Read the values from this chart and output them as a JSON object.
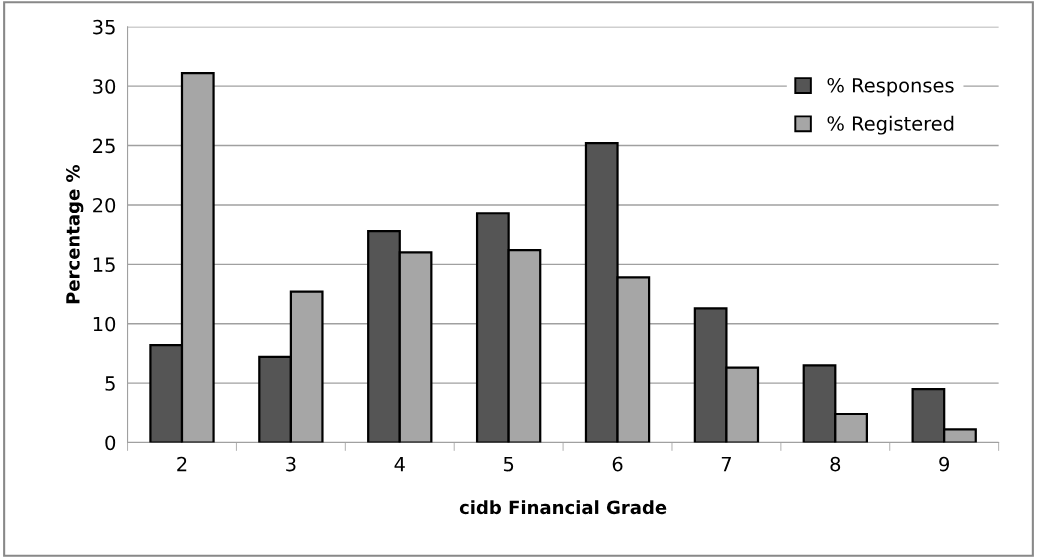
{
  "chart_data": {
    "type": "bar",
    "xlabel": "cidb Financial Grade",
    "ylabel": "Percentage %",
    "categories": [
      "2",
      "3",
      "4",
      "5",
      "6",
      "7",
      "8",
      "9"
    ],
    "series": [
      {
        "name": "% Responses",
        "color": "#555555",
        "values": [
          8.2,
          7.2,
          17.8,
          19.3,
          25.2,
          11.3,
          6.5,
          4.5
        ]
      },
      {
        "name": "% Registered",
        "color": "#a6a6a6",
        "values": [
          31.1,
          12.7,
          16.0,
          16.2,
          13.9,
          6.3,
          2.4,
          1.1
        ]
      }
    ],
    "ylim": [
      0,
      35
    ],
    "yticks": [
      0,
      5,
      10,
      15,
      20,
      25,
      30,
      35
    ],
    "grid": "y",
    "legend": "top right"
  }
}
